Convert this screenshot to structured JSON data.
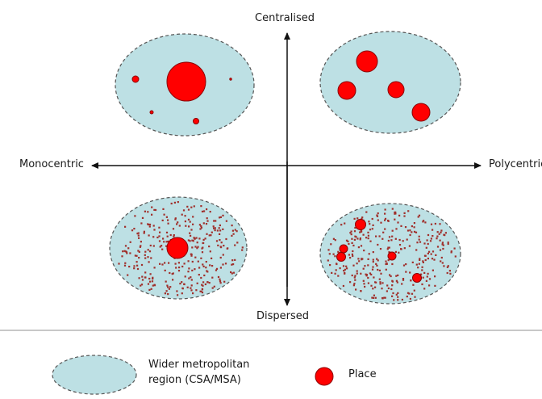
{
  "axes": {
    "top": "Centralised",
    "bottom": "Dispersed",
    "left": "Monocentric",
    "right": "Polycentric"
  },
  "legend": {
    "region_label_line1": "Wider metropolitan",
    "region_label_line2": "region (CSA/MSA)",
    "place_label": "Place"
  },
  "colors": {
    "region_fill": "#bde0e4",
    "region_stroke": "#555555",
    "place_fill": "#ff0000",
    "place_stroke": "#8b0000",
    "axis": "#111111",
    "separator": "#c8c8c8"
  },
  "quadrants": [
    {
      "id": "monocentric-centralised",
      "main_places": 1,
      "minor_places": 4,
      "scatter": "none"
    },
    {
      "id": "polycentric-centralised",
      "main_places": 4,
      "minor_places": 0,
      "scatter": "none"
    },
    {
      "id": "monocentric-dispersed",
      "main_places": 1,
      "minor_places": 0,
      "scatter": "dense"
    },
    {
      "id": "polycentric-dispersed",
      "main_places": 5,
      "minor_places": 0,
      "scatter": "dense"
    }
  ]
}
